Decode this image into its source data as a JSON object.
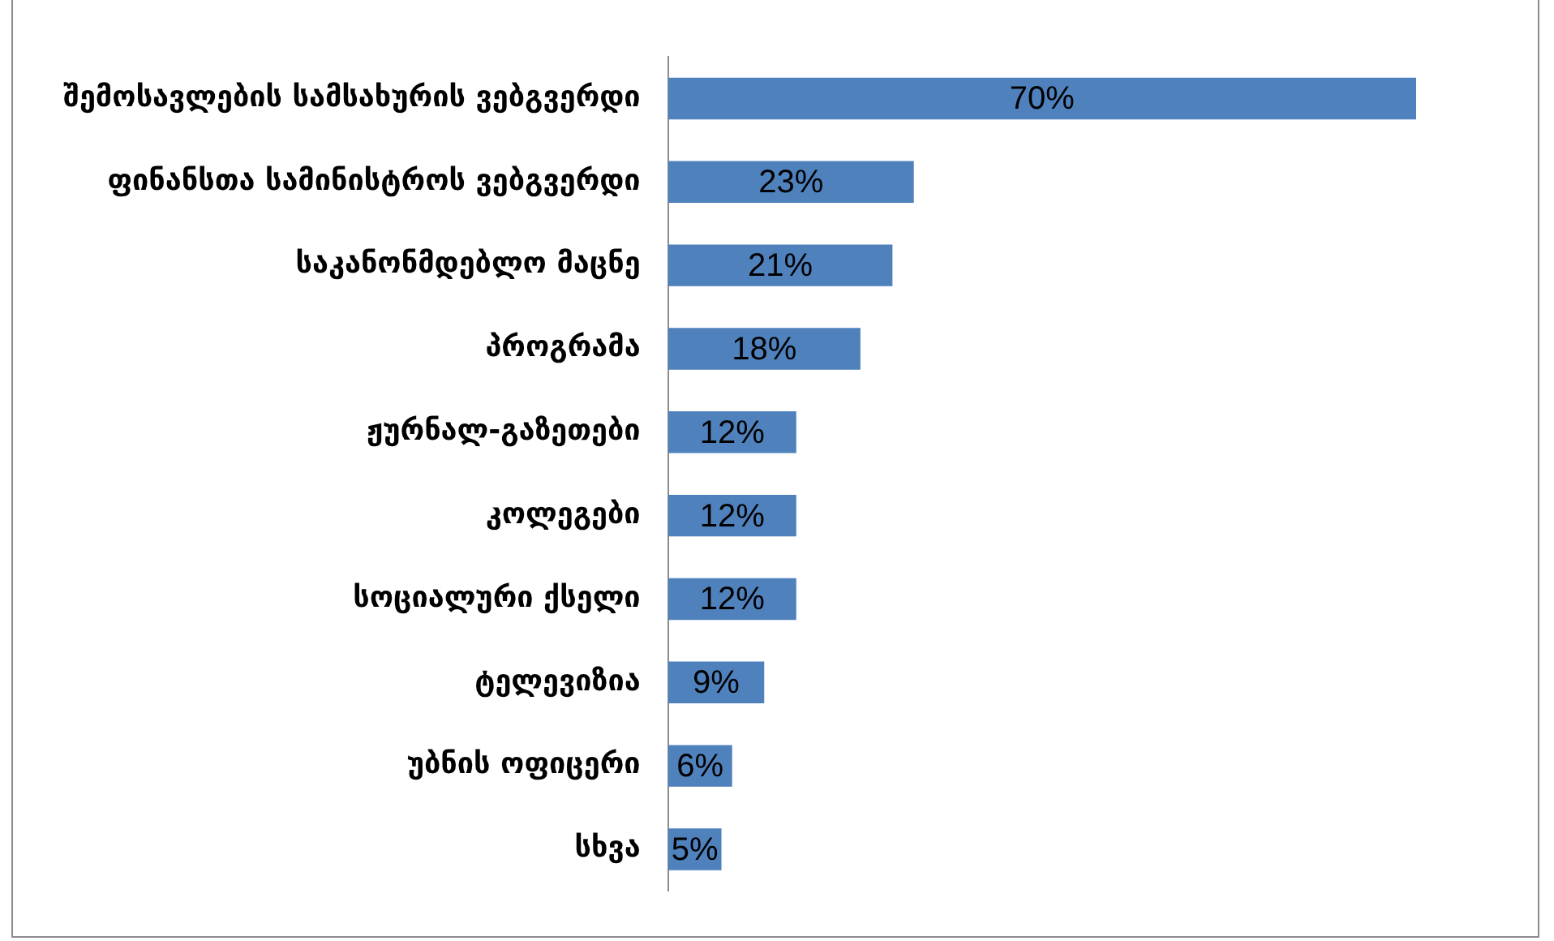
{
  "chart_data": {
    "type": "bar",
    "orientation": "horizontal",
    "categories": [
      "შემოსავლების სამსახურის ვებგვერდი",
      "ფინანსთა სამინისტროს ვებგვერდი",
      "საკანონმდებლო მაცნე",
      "პროგრამა",
      "ჟურნალ-გაზეთები",
      "კოლეგები",
      "სოციალური ქსელი",
      "ტელევიზია",
      "უბნის ოფიცერი",
      "სხვა"
    ],
    "values": [
      70,
      23,
      21,
      18,
      12,
      12,
      12,
      9,
      6,
      5
    ],
    "color": "#4f81bd",
    "value_labels": [
      "70%",
      "23%",
      "21%",
      "18%",
      "12%",
      "12%",
      "12%",
      "9%",
      "6%",
      "5%"
    ],
    "grid": false,
    "legend": false
  }
}
